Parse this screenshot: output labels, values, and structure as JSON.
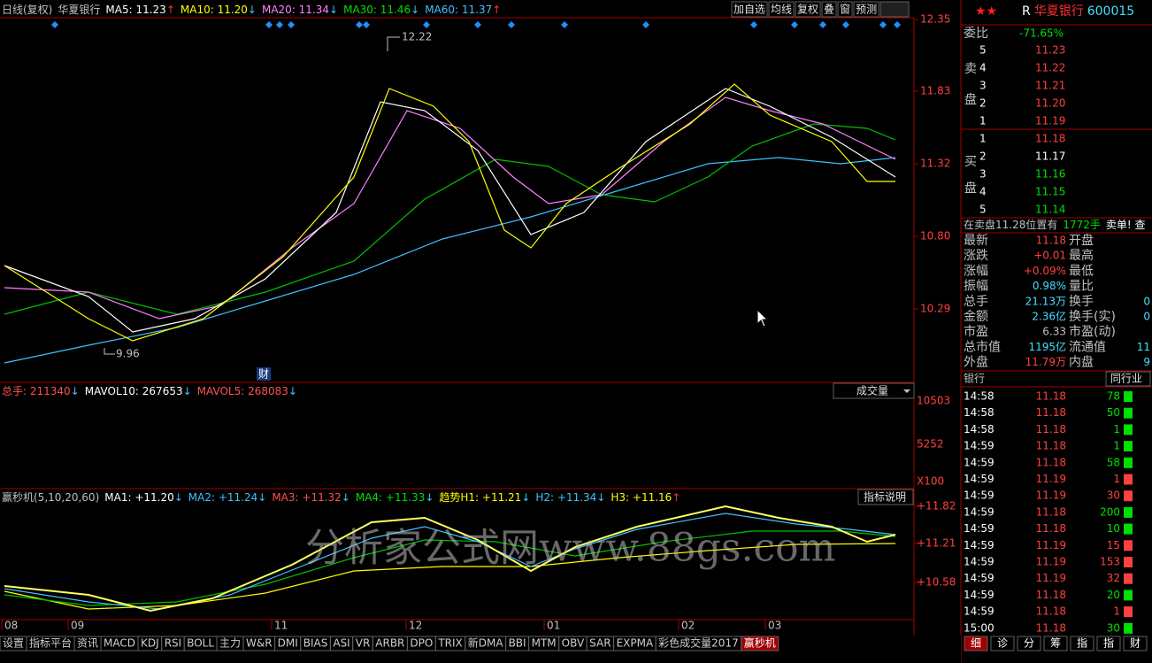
{
  "header": {
    "period": "日线(复权)",
    "name": "华夏银行",
    "ma": [
      {
        "text": "MA5: 11.23",
        "arrow": "↑",
        "color": "#ffffff"
      },
      {
        "text": "MA10: 11.20",
        "arrow": "↓",
        "color": "#ffff00"
      },
      {
        "text": "MA20: 11.34",
        "arrow": "↓",
        "color": "#ff80ff"
      },
      {
        "text": "MA30: 11.46",
        "arrow": "↓",
        "color": "#00e000"
      },
      {
        "text": "MA60: 11.37",
        "arrow": "↑",
        "color": "#40c0ff"
      }
    ]
  },
  "toolbar": [
    "加自选",
    "均线",
    "复权",
    "叠",
    "窗",
    "预测"
  ],
  "price_axis": [
    "12.35",
    "11.83",
    "11.32",
    "10.80",
    "10.29"
  ],
  "annotations": {
    "high": "12.22",
    "low": "9.96",
    "event": "财"
  },
  "volume": {
    "items": [
      {
        "text": "总手: 211340",
        "arrow": "↓",
        "color": "#ff5050"
      },
      {
        "text": "MAVOL10: 267653",
        "arrow": "↓",
        "color": "#ffffff"
      },
      {
        "text": "MAVOL5: 268083",
        "arrow": "↓",
        "color": "#ff5050"
      }
    ],
    "selector": "成交量",
    "axis": [
      "10503",
      "5252",
      "X100"
    ]
  },
  "indicator": {
    "items": [
      {
        "text": "赢秒机(5,10,20,60)",
        "arrow": "",
        "color": "#c0c0c0"
      },
      {
        "text": "MA1: +11.20",
        "arrow": "↓",
        "color": "#ffffff"
      },
      {
        "text": "MA2: +11.24",
        "arrow": "↓",
        "color": "#40c0ff"
      },
      {
        "text": "MA3: +11.32",
        "arrow": "↓",
        "color": "#ff5050"
      },
      {
        "text": "MA4: +11.33",
        "arrow": "↓",
        "color": "#00e000"
      },
      {
        "text": "趋势H1: +11.21",
        "arrow": "↓",
        "color": "#ffff00"
      },
      {
        "text": "H2: +11.34",
        "arrow": "↓",
        "color": "#40c0ff"
      },
      {
        "text": "H3: +11.16",
        "arrow": "↑",
        "color": "#ffff00"
      }
    ],
    "help": "指标说明",
    "axis": [
      "+11.82",
      "+11.21",
      "+10.58"
    ]
  },
  "watermark": "分析家公式网www.88gs.com",
  "dates": [
    "08",
    "09",
    "11",
    "12",
    "01",
    "02",
    "03"
  ],
  "tabs": [
    "设置",
    "指标平台",
    "资讯",
    "MACD",
    "KDJ",
    "RSI",
    "BOLL",
    "主力",
    "W&R",
    "DMI",
    "BIAS",
    "ASI",
    "VR",
    "ARBR",
    "DPO",
    "TRIX",
    "新DMA",
    "BBI",
    "MTM",
    "OBV",
    "SAR",
    "EXPMA",
    "彩色成交量2017",
    "赢秒机"
  ],
  "quote": {
    "flag": "R",
    "name": "华夏银行",
    "code": "600015",
    "ratio_label": "委比",
    "ratio": "-71.65%",
    "sell_label": [
      "卖",
      "盘"
    ],
    "buy_label": [
      "买",
      "盘"
    ],
    "sell": [
      {
        "level": "5",
        "price": "11.23",
        "color": "#ff4040"
      },
      {
        "level": "4",
        "price": "11.22",
        "color": "#ff4040"
      },
      {
        "level": "3",
        "price": "11.21",
        "color": "#ff4040"
      },
      {
        "level": "2",
        "price": "11.20",
        "color": "#ff4040"
      },
      {
        "level": "1",
        "price": "11.19",
        "color": "#ff4040"
      }
    ],
    "buy": [
      {
        "level": "1",
        "price": "11.18",
        "color": "#ff4040"
      },
      {
        "level": "2",
        "price": "11.17",
        "color": "#ffffff"
      },
      {
        "level": "3",
        "price": "11.16",
        "color": "#00e000"
      },
      {
        "level": "4",
        "price": "11.15",
        "color": "#00e000"
      },
      {
        "level": "5",
        "price": "11.14",
        "color": "#00e000"
      }
    ],
    "notice": [
      "在卖盘11.28位置有",
      "1772手",
      "卖单! 查"
    ],
    "stats": [
      {
        "label": "最新",
        "value": "11.18",
        "color": "#ff4040",
        "label2": "开盘",
        "value2": ""
      },
      {
        "label": "涨跌",
        "value": "+0.01",
        "color": "#ff4040",
        "label2": "最高",
        "value2": ""
      },
      {
        "label": "涨幅",
        "value": "+0.09%",
        "color": "#ff4040",
        "label2": "最低",
        "value2": ""
      },
      {
        "label": "振幅",
        "value": "0.98%",
        "color": "#40e0ff",
        "label2": "量比",
        "value2": ""
      },
      {
        "label": "总手",
        "value": "21.13万",
        "color": "#40e0ff",
        "label2": "换手",
        "value2": "0"
      },
      {
        "label": "金额",
        "value": "2.36亿",
        "color": "#40e0ff",
        "label2": "换手(实)",
        "value2": "0"
      },
      {
        "label": "市盈",
        "value": "6.33",
        "color": "#c0c0c0",
        "label2": "市盈(动)",
        "value2": ""
      },
      {
        "label": "总市值",
        "value": "1195亿",
        "color": "#40e0ff",
        "label2": "流通值",
        "value2": "11"
      },
      {
        "label": "外盘",
        "value": "11.79万",
        "color": "#ff4040",
        "label2": "内盘",
        "value2": "9"
      }
    ],
    "sector": "银行",
    "peer": "同行业",
    "ticks": [
      {
        "time": "14:58",
        "price": "11.18",
        "vol": "78",
        "color": "#00e000"
      },
      {
        "time": "14:58",
        "price": "11.18",
        "vol": "50",
        "color": "#00e000"
      },
      {
        "time": "14:58",
        "price": "11.18",
        "vol": "1",
        "color": "#00e000"
      },
      {
        "time": "14:59",
        "price": "11.18",
        "vol": "1",
        "color": "#00e000"
      },
      {
        "time": "14:59",
        "price": "11.18",
        "vol": "58",
        "color": "#00e000"
      },
      {
        "time": "14:59",
        "price": "11.19",
        "vol": "1",
        "color": "#ff4040"
      },
      {
        "time": "14:59",
        "price": "11.19",
        "vol": "30",
        "color": "#ff4040"
      },
      {
        "time": "14:59",
        "price": "11.18",
        "vol": "200",
        "color": "#00e000"
      },
      {
        "time": "14:59",
        "price": "11.18",
        "vol": "10",
        "color": "#00e000"
      },
      {
        "time": "14:59",
        "price": "11.19",
        "vol": "15",
        "color": "#ff4040"
      },
      {
        "time": "14:59",
        "price": "11.19",
        "vol": "153",
        "color": "#ff4040"
      },
      {
        "time": "14:59",
        "price": "11.19",
        "vol": "32",
        "color": "#ff4040"
      },
      {
        "time": "14:59",
        "price": "11.18",
        "vol": "20",
        "color": "#00e000"
      },
      {
        "time": "14:59",
        "price": "11.18",
        "vol": "1",
        "color": "#ff4040"
      },
      {
        "time": "15:00",
        "price": "11.18",
        "vol": "30",
        "color": "#00e000"
      }
    ],
    "side_tabs": [
      "细",
      "诊",
      "分",
      "筹",
      "指",
      "指",
      "财"
    ]
  }
}
